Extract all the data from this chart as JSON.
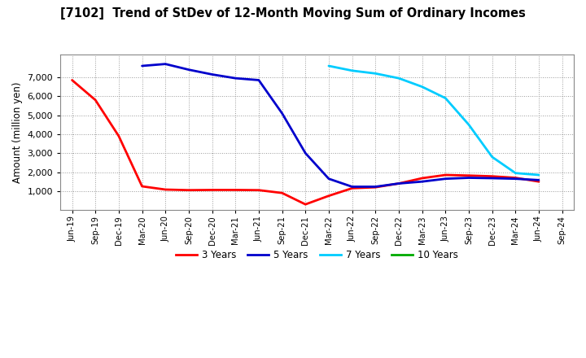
{
  "title": "[7102]  Trend of StDev of 12-Month Moving Sum of Ordinary Incomes",
  "ylabel": "Amount (million yen)",
  "background_color": "#ffffff",
  "plot_background": "#ffffff",
  "x_labels": [
    "Jun-19",
    "Sep-19",
    "Dec-19",
    "Mar-20",
    "Jun-20",
    "Sep-20",
    "Dec-20",
    "Mar-21",
    "Jun-21",
    "Sep-21",
    "Dec-21",
    "Mar-22",
    "Jun-22",
    "Sep-22",
    "Dec-22",
    "Mar-23",
    "Jun-23",
    "Sep-23",
    "Dec-23",
    "Mar-24",
    "Jun-24",
    "Sep-24"
  ],
  "series": {
    "3 Years": {
      "color": "#ff0000",
      "data_y": [
        6850,
        5800,
        3900,
        1250,
        1080,
        1050,
        1060,
        1060,
        1050,
        900,
        300,
        750,
        1150,
        1200,
        1400,
        1680,
        1850,
        1820,
        1780,
        1700,
        1500,
        null
      ]
    },
    "5 Years": {
      "color": "#0000cc",
      "data_y": [
        null,
        null,
        null,
        7600,
        7700,
        7400,
        7150,
        6950,
        6850,
        5100,
        3000,
        1650,
        1230,
        1230,
        1400,
        1500,
        1650,
        1700,
        1680,
        1650,
        1580,
        null
      ]
    },
    "7 Years": {
      "color": "#00ccff",
      "data_y": [
        null,
        null,
        null,
        null,
        null,
        null,
        null,
        null,
        null,
        null,
        null,
        7600,
        7350,
        7200,
        6950,
        6500,
        5900,
        4500,
        2800,
        1950,
        1850,
        null
      ]
    },
    "10 Years": {
      "color": "#00aa00",
      "data_y": [
        null,
        null,
        null,
        null,
        null,
        null,
        null,
        null,
        null,
        null,
        null,
        null,
        null,
        null,
        null,
        null,
        null,
        null,
        null,
        null,
        null,
        null
      ]
    }
  },
  "ylim": [
    0,
    8200
  ],
  "yticks": [
    1000,
    2000,
    3000,
    4000,
    5000,
    6000,
    7000
  ],
  "legend_order": [
    "3 Years",
    "5 Years",
    "7 Years",
    "10 Years"
  ],
  "legend_colors": [
    "#ff0000",
    "#0000cc",
    "#00ccff",
    "#00aa00"
  ]
}
